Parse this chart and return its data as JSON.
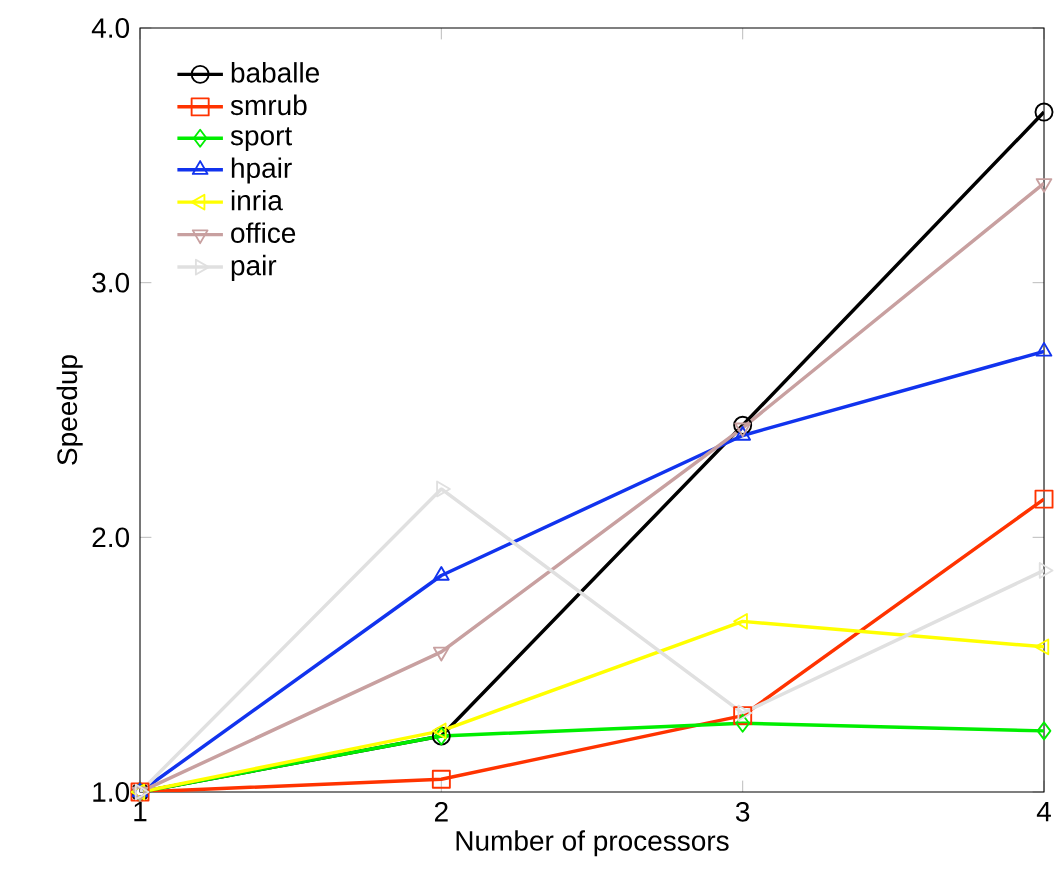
{
  "chart_data": {
    "type": "line",
    "xlabel": "Number of processors",
    "ylabel": "Speedup",
    "x": [
      1,
      2,
      3,
      4
    ],
    "series": [
      {
        "name": "baballe",
        "color": "#000000",
        "marker": "circle",
        "values": [
          1.0,
          1.22,
          2.44,
          3.67
        ]
      },
      {
        "name": "smrub",
        "color": "#ff3300",
        "marker": "square",
        "values": [
          1.0,
          1.05,
          1.3,
          2.15
        ]
      },
      {
        "name": "sport",
        "color": "#00ee00",
        "marker": "diamond",
        "values": [
          1.0,
          1.22,
          1.27,
          1.24
        ]
      },
      {
        "name": "hpair",
        "color": "#1133ee",
        "marker": "triangle",
        "values": [
          1.0,
          1.85,
          2.4,
          2.73
        ]
      },
      {
        "name": "inria",
        "color": "#ffff00",
        "marker": "triangle-left",
        "values": [
          1.0,
          1.24,
          1.67,
          1.57
        ]
      },
      {
        "name": "office",
        "color": "#c8a0a0",
        "marker": "triangle-down",
        "values": [
          1.0,
          1.55,
          2.43,
          3.39
        ]
      },
      {
        "name": "pair",
        "color": "#e0e0e0",
        "marker": "triangle-right",
        "values": [
          1.0,
          2.19,
          1.31,
          1.87
        ]
      }
    ],
    "xlim": [
      1,
      4
    ],
    "xticks": [
      1,
      2,
      3,
      4
    ],
    "ylim": [
      1.0,
      4.0
    ],
    "yticks": [
      {
        "value": 1.0,
        "label": "1.0"
      },
      {
        "value": 2.0,
        "label": "2.0"
      },
      {
        "value": 3.0,
        "label": "3.0"
      },
      {
        "value": 4.0,
        "label": "4.0"
      }
    ],
    "grid": false,
    "legend": "top left",
    "line_style": "solid"
  }
}
